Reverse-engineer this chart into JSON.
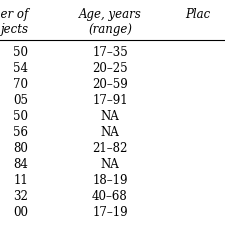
{
  "col1_header": "ber of\njects",
  "col2_header": "Age, years\n(range)",
  "col3_header": "Plac",
  "col1_values": [
    "50",
    "54",
    "70",
    "05",
    "50",
    "56",
    "80",
    "84",
    "11",
    "32",
    "00"
  ],
  "col2_values": [
    "17–35",
    "20–25",
    "20–59",
    "17–91",
    "NA",
    "NA",
    "21–82",
    "NA",
    "18–19",
    "40–68",
    "17–19"
  ],
  "background_color": "#ffffff",
  "text_color": "#000000",
  "font_size": 8.5,
  "header_font_size": 8.5,
  "line_color": "#000000"
}
